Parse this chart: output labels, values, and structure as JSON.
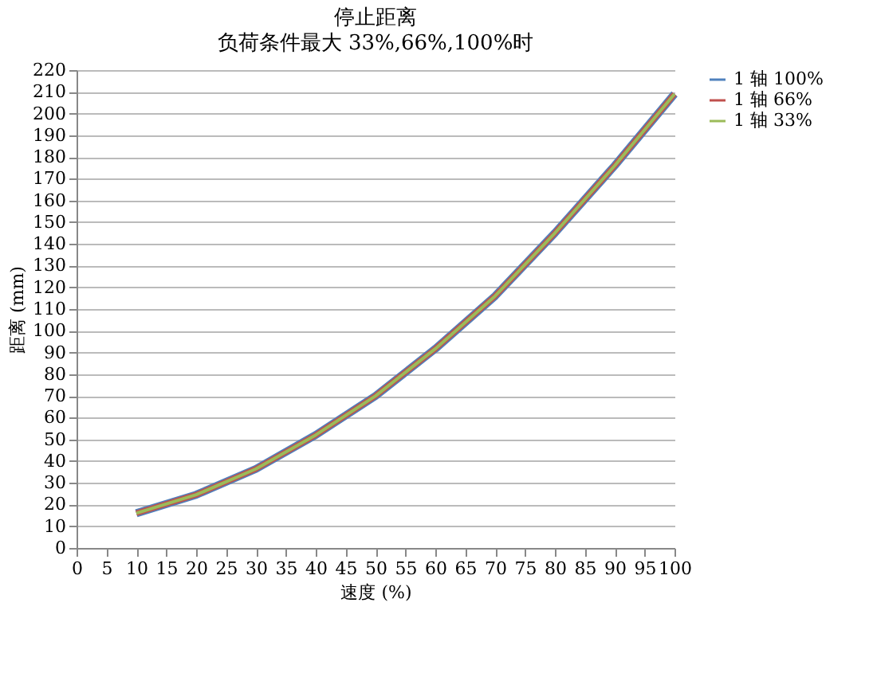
{
  "chart_data": {
    "type": "line",
    "title": "停止距离",
    "subtitle": "负荷条件最大 33%,66%,100%时",
    "xlabel": "速度 (%)",
    "ylabel": "距离 (mm)",
    "x": [
      10,
      20,
      30,
      40,
      50,
      60,
      70,
      80,
      90,
      100
    ],
    "series": [
      {
        "name": "1 轴  100%",
        "color": "#4f81bd",
        "values": [
          16,
          24.5,
          36.4,
          52,
          70,
          91.7,
          116,
          145,
          176,
          209
        ]
      },
      {
        "name": "1 轴  66%",
        "color": "#c0504d",
        "values": [
          16,
          24.5,
          36.4,
          52,
          70,
          91.7,
          116,
          145,
          176,
          209
        ]
      },
      {
        "name": "1 轴  33%",
        "color": "#9bbb59",
        "values": [
          16,
          24.5,
          36.4,
          52,
          70,
          91.7,
          116,
          145,
          176,
          209
        ]
      }
    ],
    "xlim": [
      0,
      100
    ],
    "xticks": [
      0,
      5,
      10,
      15,
      20,
      25,
      30,
      35,
      40,
      45,
      50,
      55,
      60,
      65,
      70,
      75,
      80,
      85,
      90,
      95,
      100
    ],
    "ylim": [
      0,
      220
    ],
    "yticks": [
      0,
      10,
      20,
      30,
      40,
      50,
      60,
      70,
      80,
      90,
      100,
      110,
      120,
      130,
      140,
      150,
      160,
      170,
      180,
      190,
      200,
      210,
      220
    ],
    "grid": "y",
    "legend": "right",
    "marker": "none",
    "line_style": "solid"
  }
}
